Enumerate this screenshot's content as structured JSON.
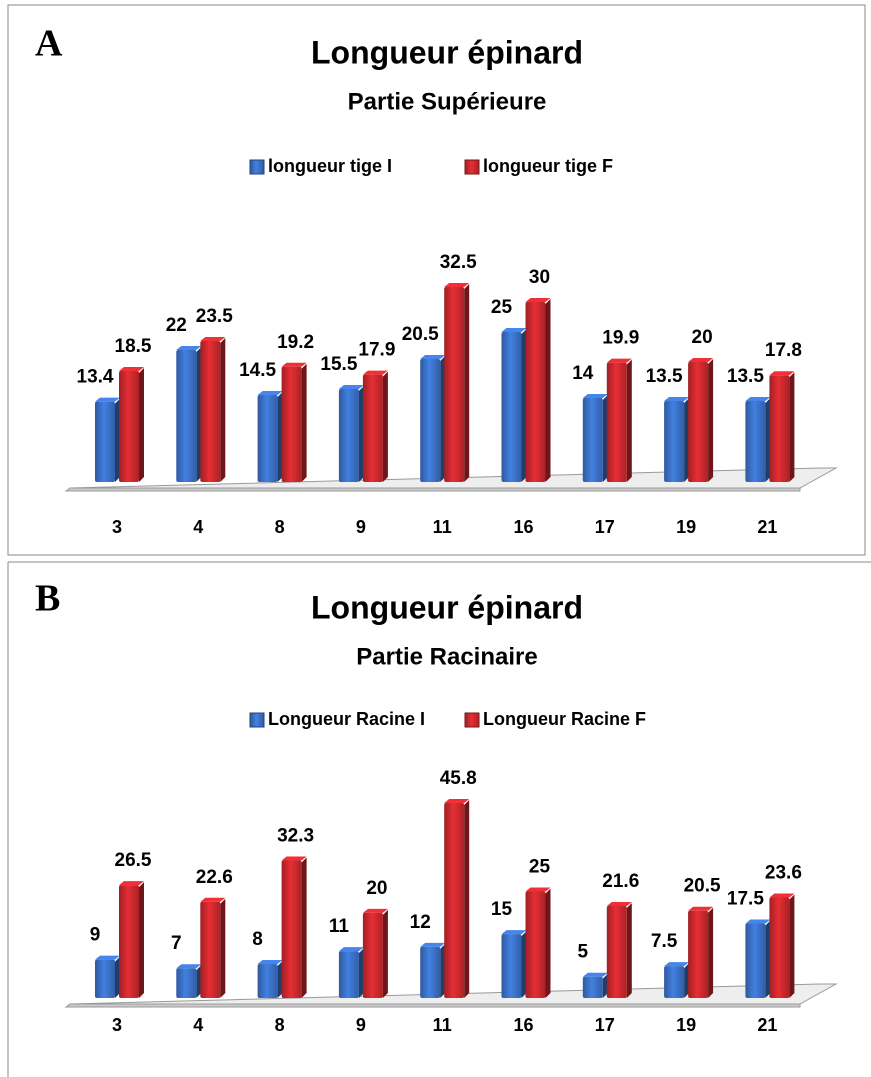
{
  "chart_data": [
    {
      "type": "bar",
      "panel": "A",
      "title": "Longueur épinard",
      "subtitle": "Partie Supérieure",
      "categories": [
        "3",
        "4",
        "8",
        "9",
        "11",
        "16",
        "17",
        "19",
        "21"
      ],
      "series": [
        {
          "name": "longueur tige I",
          "color": "#3a6fc4",
          "values": [
            13.4,
            22,
            14.5,
            15.5,
            20.5,
            25,
            14,
            13.5,
            13.5
          ]
        },
        {
          "name": "longueur tige F",
          "color": "#c8282d",
          "values": [
            18.5,
            23.5,
            19.2,
            17.9,
            32.5,
            30,
            19.9,
            20,
            17.8
          ]
        }
      ]
    },
    {
      "type": "bar",
      "panel": "B",
      "title": "Longueur épinard",
      "subtitle": "Partie Racinaire",
      "categories": [
        "3",
        "4",
        "8",
        "9",
        "11",
        "16",
        "17",
        "19",
        "21"
      ],
      "series": [
        {
          "name": "Longueur Racine I",
          "color": "#3a6fc4",
          "values": [
            9,
            7,
            8,
            11,
            12,
            15,
            5,
            7.5,
            17.5
          ]
        },
        {
          "name": "Longueur Racine F",
          "color": "#c8282d",
          "values": [
            26.5,
            22.6,
            32.3,
            20,
            45.8,
            25,
            21.6,
            20.5,
            23.6
          ]
        }
      ]
    }
  ]
}
